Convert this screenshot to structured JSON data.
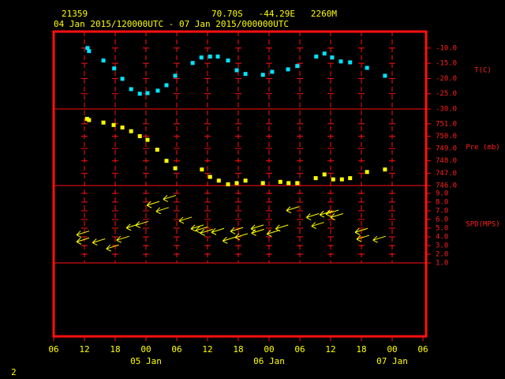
{
  "header": {
    "station": "21359",
    "location": "70.70S   -44.29E   2260M",
    "period": "04 Jan 2015/120000UTC - 07 Jan 2015/000000UTC",
    "page": "2"
  },
  "x_axis": {
    "xlim": [
      0,
      72
    ],
    "xticks": [
      {
        "value": 0,
        "label": "06"
      },
      {
        "value": 6,
        "label": "12"
      },
      {
        "value": 12,
        "label": "18"
      },
      {
        "value": 18,
        "label": "00"
      },
      {
        "value": 24,
        "label": "06"
      },
      {
        "value": 30,
        "label": "12"
      },
      {
        "value": 36,
        "label": "18"
      },
      {
        "value": 42,
        "label": "00"
      },
      {
        "value": 48,
        "label": "06"
      },
      {
        "value": 54,
        "label": "12"
      },
      {
        "value": 60,
        "label": "18"
      },
      {
        "value": 66,
        "label": "00"
      },
      {
        "value": 72,
        "label": "06"
      }
    ],
    "date_labels": [
      {
        "value": 18,
        "label": "05 Jan"
      },
      {
        "value": 42,
        "label": "06 Jan"
      },
      {
        "value": 66,
        "label": "07 Jan"
      }
    ]
  },
  "chart_data": [
    {
      "type": "scatter",
      "label": "T(C)",
      "color": "#00e5ff",
      "x": [
        6.6,
        6.9,
        9.7,
        11.8,
        13.4,
        15.1,
        16.8,
        18.3,
        20.3,
        22.0,
        23.7,
        27.1,
        28.8,
        30.5,
        32.0,
        34.0,
        35.7,
        37.4,
        40.8,
        42.6,
        45.7,
        47.5,
        51.2,
        52.8,
        54.3,
        56.0,
        57.8,
        61.1,
        64.6
      ],
      "values": [
        -10.0,
        -11.0,
        -14.1,
        -16.7,
        -20.1,
        -23.5,
        -25.0,
        -24.8,
        -24.0,
        -22.2,
        -19.1,
        -14.9,
        -13.1,
        -12.8,
        -12.8,
        -14.1,
        -17.3,
        -18.5,
        -18.8,
        -17.8,
        -17.0,
        -15.9,
        -12.8,
        -11.8,
        -13.1,
        -14.4,
        -14.7,
        -16.5,
        -19.1
      ],
      "ylim": [
        -30,
        -4.6
      ],
      "yticks": [
        {
          "value": -10,
          "label": "-10.0"
        },
        {
          "value": -15,
          "label": "-15.0"
        },
        {
          "value": -20,
          "label": "-20.0"
        },
        {
          "value": -25,
          "label": "-25.0"
        },
        {
          "value": -30,
          "label": "-30.0"
        }
      ]
    },
    {
      "type": "scatter",
      "label": "Pre (mb)",
      "color": "#ffff00",
      "x": [
        6.5,
        6.9,
        9.7,
        11.7,
        13.4,
        15.1,
        16.8,
        18.3,
        20.2,
        22.0,
        23.7,
        28.9,
        30.5,
        32.2,
        34.0,
        35.7,
        37.4,
        40.8,
        44.2,
        45.8,
        47.5,
        51.1,
        52.8,
        54.5,
        56.2,
        57.8,
        61.1,
        64.6
      ],
      "values": [
        751.4,
        751.3,
        751.1,
        750.9,
        750.7,
        750.4,
        750.0,
        749.7,
        748.9,
        748.0,
        747.4,
        747.3,
        746.7,
        746.4,
        746.1,
        746.2,
        746.4,
        746.2,
        746.3,
        746.2,
        746.2,
        746.6,
        746.9,
        746.5,
        746.5,
        746.6,
        747.1,
        747.3
      ],
      "ylim": [
        746,
        752.2
      ],
      "yticks": [
        {
          "value": 751,
          "label": "751.0"
        },
        {
          "value": 750,
          "label": "750.0"
        },
        {
          "value": 749,
          "label": "749.0"
        },
        {
          "value": 748,
          "label": "748.0"
        },
        {
          "value": 747,
          "label": "747.0"
        },
        {
          "value": 746,
          "label": "746.0"
        }
      ]
    },
    {
      "type": "arrow",
      "label": "SPD(MPS)",
      "color": "#ffff00",
      "x": [
        5.7,
        5.7,
        8.8,
        11.5,
        13.5,
        15.4,
        17.2,
        19.4,
        21.2,
        22.6,
        25.7,
        28.0,
        28.9,
        29.8,
        32.0,
        34.2,
        35.7,
        36.6,
        39.7,
        39.8,
        42.8,
        44.5,
        46.6,
        50.5,
        51.5,
        53.1,
        54.3,
        55.2,
        60.0,
        60.3,
        63.5
      ],
      "values": [
        4.4,
        3.6,
        3.5,
        2.8,
        3.8,
        5.2,
        5.5,
        7.8,
        7.1,
        8.5,
        6.0,
        5.1,
        4.9,
        4.6,
        4.7,
        3.7,
        4.8,
        4.1,
        5.1,
        4.6,
        4.5,
        5.1,
        7.2,
        6.4,
        5.4,
        6.7,
        6.8,
        6.4,
        4.7,
        3.9,
        3.8
      ],
      "ylim": [
        1,
        9.9
      ],
      "yticks": [
        {
          "value": 9,
          "label": "9.0"
        },
        {
          "value": 8,
          "label": "8.0"
        },
        {
          "value": 7,
          "label": "7.0"
        },
        {
          "value": 6,
          "label": "6.0"
        },
        {
          "value": 5,
          "label": "5.0"
        },
        {
          "value": 4,
          "label": "4.0"
        },
        {
          "value": 3,
          "label": "3.0"
        },
        {
          "value": 2,
          "label": "2.0"
        },
        {
          "value": 1,
          "label": "1.0"
        }
      ]
    }
  ]
}
